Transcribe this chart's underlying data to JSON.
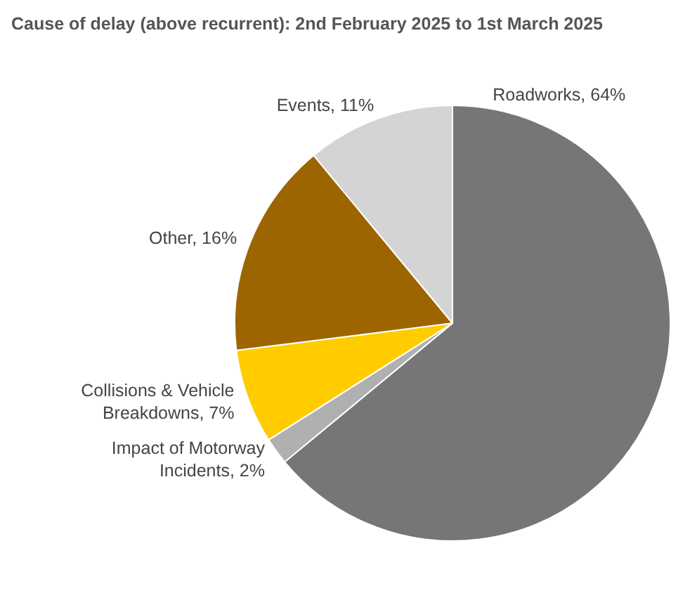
{
  "chart_data": {
    "type": "pie",
    "title": "Cause of delay (above recurrent): 2nd February 2025 to 1st March 2025",
    "categories": [
      "Roadworks",
      "Impact of Motorway Incidents",
      "Collisions & Vehicle Breakdowns",
      "Other",
      "Events"
    ],
    "values": [
      64,
      2,
      7,
      16,
      11
    ],
    "value_labels": [
      "64%",
      "2%",
      "7%",
      "16%",
      "11%"
    ],
    "colors": [
      "#767676",
      "#b0b0b0",
      "#ffcc00",
      "#9c6500",
      "#d4d4d4"
    ],
    "legend": false
  }
}
